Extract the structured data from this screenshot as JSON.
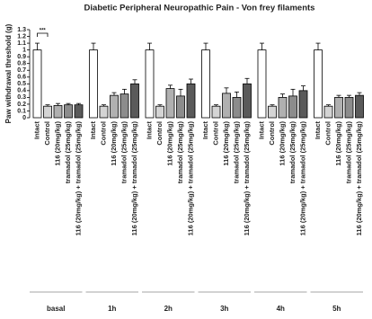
{
  "chart_data": {
    "type": "bar",
    "title": "Diabetic Peripheral Neuropathic Pain -  Von frey filaments",
    "y_label": "Paw withdrawal threshold (g)",
    "categories": [
      "basal",
      "1h",
      "2h",
      "3h",
      "4h",
      "5h"
    ],
    "series": [
      {
        "name": "Intact",
        "color": "#ffffff",
        "values": [
          1.0,
          1.0,
          1.0,
          1.0,
          1.0,
          1.0
        ],
        "errors": [
          0.1,
          0.1,
          0.1,
          0.1,
          0.1,
          0.1
        ]
      },
      {
        "name": "Control",
        "color": "#d4d4d4",
        "values": [
          0.17,
          0.17,
          0.17,
          0.17,
          0.17,
          0.17
        ],
        "errors": [
          0.02,
          0.02,
          0.02,
          0.02,
          0.02,
          0.02
        ]
      },
      {
        "name": "116 (20mg/kg)",
        "color": "#b0b0b0",
        "values": [
          0.18,
          0.33,
          0.43,
          0.36,
          0.3,
          0.3
        ],
        "errors": [
          0.03,
          0.04,
          0.05,
          0.08,
          0.05,
          0.03
        ]
      },
      {
        "name": "tramadol (25mg/kg)",
        "color": "#8c8c8c",
        "values": [
          0.19,
          0.35,
          0.32,
          0.3,
          0.32,
          0.3
        ],
        "errors": [
          0.02,
          0.07,
          0.1,
          0.08,
          0.1,
          0.03
        ]
      },
      {
        "name": "116 (20mg/kg) + tramadol (25mg/kg)",
        "color": "#5a5a5a",
        "values": [
          0.19,
          0.5,
          0.5,
          0.5,
          0.4,
          0.33
        ],
        "errors": [
          0.02,
          0.06,
          0.07,
          0.08,
          0.07,
          0.04
        ]
      }
    ],
    "annotation": "***",
    "ylim": [
      0,
      1.3
    ],
    "yticks": [
      0,
      0.1,
      0.2,
      0.3,
      0.4,
      0.5,
      0.6,
      0.7,
      0.8,
      0.9,
      1,
      1.1,
      1.2,
      1.3
    ]
  }
}
